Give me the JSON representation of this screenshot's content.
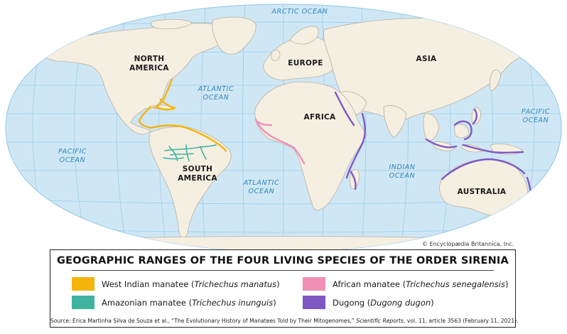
{
  "map": {
    "colors": {
      "ocean": "#cfe7f5",
      "land": "#f5efe2",
      "border": "#b9b0a0",
      "graticule": "#9ccde8",
      "west_indian": "#f5b40a",
      "amazonian": "#40b3a0",
      "african": "#ef8fb4",
      "dugong": "#7f58c4"
    },
    "continents": {
      "north_america": [
        "NORTH",
        "AMERICA"
      ],
      "south_america": [
        "SOUTH",
        "AMERICA"
      ],
      "europe": "EUROPE",
      "asia": "ASIA",
      "africa": "AFRICA",
      "australia": "AUSTRALIA"
    },
    "oceans": {
      "arctic": "ARCTIC OCEAN",
      "atlantic_north": [
        "ATLANTIC",
        "OCEAN"
      ],
      "atlantic_south": [
        "ATLANTIC",
        "OCEAN"
      ],
      "pacific_west": [
        "PACIFIC",
        "OCEAN"
      ],
      "pacific_east": [
        "PACIFIC",
        "OCEAN"
      ],
      "indian": [
        "INDIAN",
        "OCEAN"
      ]
    },
    "credit": "© Encyclopædia Britannica, Inc."
  },
  "legend": {
    "title": "GEOGRAPHIC RANGES OF THE FOUR LIVING SPECIES OF THE ORDER SIRENIA",
    "items": [
      {
        "common": "West Indian manatee (",
        "latin": "Trichechus manatus",
        "close": ")",
        "color": "#f5b40a"
      },
      {
        "common": "African manatee (",
        "latin": "Trichechus senegalensis",
        "close": ")",
        "color": "#ef8fb4"
      },
      {
        "common": "Amazonian manatee (",
        "latin": "Trichechus inunguis",
        "close": ")",
        "color": "#40b3a0"
      },
      {
        "common": "Dugong (",
        "latin": "Dugong dugon",
        "close": ")",
        "color": "#7f58c4"
      }
    ],
    "source": {
      "prefix": "Source: Érica Martinha Silva de Souza et al., “The Evolutionary History of Manatees Told by Their Mitogenomes,” ",
      "journal": "Scientific Reports",
      "suffix": ", vol. 11, article 3563 (February 11, 2021)."
    }
  }
}
